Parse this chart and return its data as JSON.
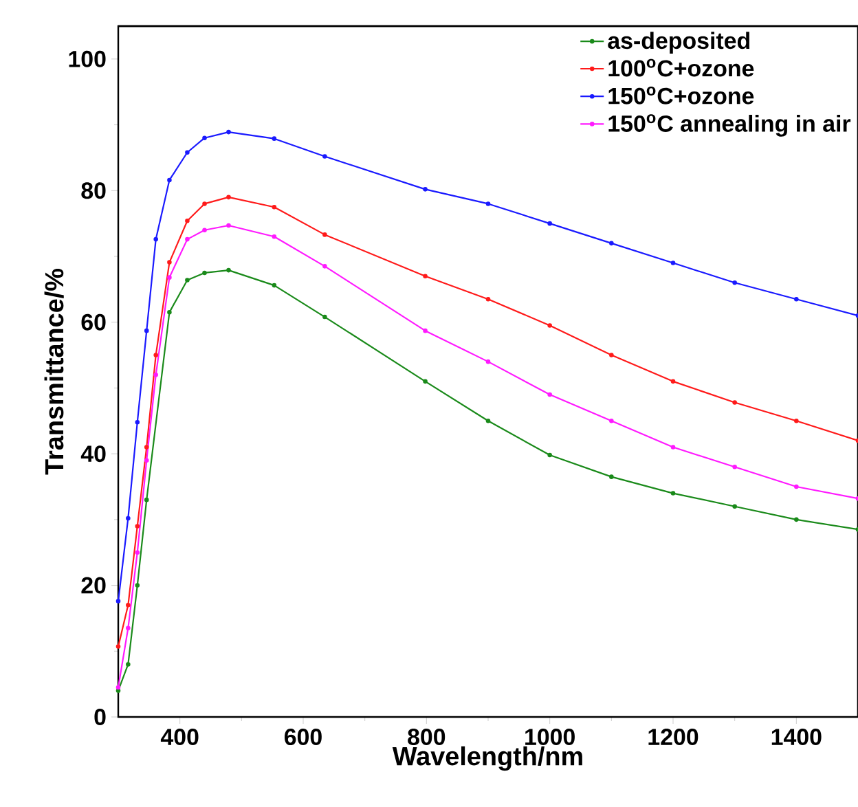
{
  "chart_data": {
    "type": "line",
    "xlabel": "Wavelength/nm",
    "ylabel": "Transmittance/%",
    "xlim": [
      300,
      1500
    ],
    "ylim": [
      0,
      105
    ],
    "xticks": [
      400,
      600,
      800,
      1000,
      1200,
      1400
    ],
    "yticks": [
      0,
      20,
      40,
      60,
      80,
      100
    ],
    "grid": false,
    "legend": "top right",
    "marker": "circle",
    "line_style": "solid",
    "x": [
      300,
      316,
      331,
      346,
      361,
      383,
      412,
      440,
      479,
      553,
      635,
      798,
      900,
      1000,
      1100,
      1200,
      1300,
      1400,
      1500
    ],
    "series": [
      {
        "name": "as-deposited",
        "color": "#1a8a1a",
        "values": [
          4,
          8,
          20,
          33,
          null,
          61.5,
          66.4,
          67.5,
          67.9,
          65.6,
          60.8,
          51,
          45,
          39.8,
          36.5,
          34,
          32,
          30,
          28.5
        ]
      },
      {
        "name": "100$^{o}$C+ozone",
        "color": "#ff1a1a",
        "values": [
          10.7,
          17,
          29,
          41,
          55,
          69.1,
          75.4,
          78,
          79,
          77.5,
          73.3,
          67,
          63.5,
          59.5,
          55,
          51,
          47.8,
          45,
          42
        ]
      },
      {
        "name": "150$^{o}$C+ozone",
        "color": "#1a1aff",
        "values": [
          17.6,
          30.2,
          44.8,
          58.7,
          72.6,
          81.6,
          85.8,
          88,
          88.9,
          87.9,
          85.2,
          80.2,
          78,
          75,
          72,
          69,
          66,
          63.5,
          61
        ]
      },
      {
        "name": "150$^{o}$C annealing in air",
        "color": "#ff1aff",
        "values": [
          4.5,
          13.5,
          25,
          39,
          52,
          66.8,
          72.6,
          74,
          74.7,
          73,
          68.5,
          58.7,
          54,
          49,
          45,
          41,
          38,
          35,
          33.2
        ]
      }
    ]
  }
}
